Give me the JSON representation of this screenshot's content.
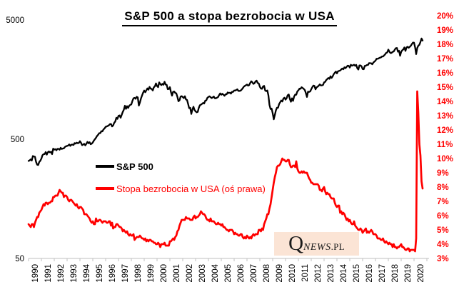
{
  "page": {
    "background": "#ffffff"
  },
  "watermark": {
    "q": "Q",
    "news": "NEWS",
    "pl": ".PL",
    "background": "#fbe4d5"
  },
  "chart_data": {
    "type": "line",
    "title": "S&P 500 a stopa bezrobocia w USA",
    "grid": false,
    "legend_position": "inside-left-middle",
    "x": {
      "frequency": "monthly",
      "start": "1990-01",
      "end": "2020-09",
      "tick_labels": [
        "1990",
        "1991",
        "1992",
        "1993",
        "1994",
        "1995",
        "1996",
        "1997",
        "1998",
        "1999",
        "2000",
        "2001",
        "2002",
        "2003",
        "2004",
        "2005",
        "2006",
        "2007",
        "2008",
        "2009",
        "2010",
        "2011",
        "2012",
        "2013",
        "2014",
        "2015",
        "2016",
        "2017",
        "2018",
        "2019",
        "2020"
      ]
    },
    "left_axis": {
      "scale": "log",
      "range": [
        50,
        5000
      ],
      "tick_values": [
        50,
        500,
        5000
      ],
      "tick_labels": [
        "50",
        "500",
        "5000"
      ],
      "color": "#000000"
    },
    "right_axis": {
      "scale": "linear",
      "min": 3,
      "max": 20,
      "step": 1,
      "unit": "%",
      "tick_labels": [
        "20%",
        "19%",
        "18%",
        "17%",
        "16%",
        "15%",
        "14%",
        "13%",
        "12%",
        "11%",
        "10%",
        "9%",
        "8%",
        "7%",
        "6%",
        "5%",
        "4%",
        "3%"
      ],
      "color": "#ff0000"
    },
    "series": [
      {
        "name": "S&P 500",
        "axis": "left",
        "color": "#000000",
        "values": [
          329,
          332,
          339,
          331,
          361,
          358,
          356,
          323,
          306,
          304,
          322,
          330,
          344,
          367,
          375,
          375,
          390,
          371,
          388,
          395,
          388,
          392,
          375,
          417,
          409,
          413,
          404,
          415,
          415,
          408,
          424,
          414,
          418,
          419,
          431,
          436,
          439,
          443,
          452,
          440,
          450,
          451,
          448,
          464,
          459,
          468,
          462,
          466,
          482,
          467,
          446,
          451,
          457,
          444,
          458,
          475,
          463,
          472,
          454,
          459,
          470,
          487,
          501,
          515,
          533,
          545,
          562,
          562,
          584,
          582,
          605,
          616,
          636,
          640,
          646,
          654,
          669,
          671,
          640,
          652,
          687,
          705,
          757,
          741,
          786,
          791,
          757,
          801,
          848,
          885,
          954,
          899,
          947,
          915,
          955,
          970,
          980,
          1049,
          1102,
          1112,
          1091,
          1134,
          1121,
          957,
          1017,
          1099,
          1164,
          1229,
          1280,
          1238,
          1286,
          1335,
          1302,
          1373,
          1329,
          1320,
          1283,
          1363,
          1389,
          1469,
          1394,
          1366,
          1499,
          1452,
          1421,
          1455,
          1431,
          1518,
          1437,
          1429,
          1315,
          1320,
          1366,
          1240,
          1160,
          1249,
          1256,
          1224,
          1211,
          1134,
          1041,
          1060,
          1139,
          1148,
          1130,
          1107,
          1147,
          1077,
          1067,
          990,
          911,
          916,
          815,
          886,
          936,
          880,
          856,
          841,
          848,
          917,
          964,
          975,
          990,
          1008,
          996,
          1051,
          1058,
          1112,
          1131,
          1145,
          1126,
          1107,
          1121,
          1141,
          1102,
          1104,
          1115,
          1130,
          1174,
          1212,
          1181,
          1204,
          1181,
          1157,
          1192,
          1191,
          1234,
          1220,
          1229,
          1207,
          1249,
          1248,
          1280,
          1281,
          1295,
          1311,
          1270,
          1270,
          1277,
          1304,
          1336,
          1378,
          1401,
          1418,
          1438,
          1407,
          1421,
          1482,
          1531,
          1503,
          1455,
          1474,
          1527,
          1549,
          1481,
          1468,
          1379,
          1331,
          1323,
          1386,
          1400,
          1280,
          1267,
          1283,
          1166,
          969,
          896,
          903,
          826,
          735,
          798,
          873,
          919,
          919,
          987,
          1021,
          1057,
          1036,
          1096,
          1115,
          1074,
          1104,
          1169,
          1187,
          1089,
          1031,
          1102,
          1049,
          1141,
          1183,
          1181,
          1258,
          1286,
          1327,
          1326,
          1364,
          1345,
          1321,
          1292,
          1219,
          1131,
          1253,
          1247,
          1258,
          1312,
          1366,
          1408,
          1398,
          1310,
          1362,
          1379,
          1407,
          1441,
          1412,
          1416,
          1426,
          1498,
          1515,
          1569,
          1598,
          1631,
          1606,
          1686,
          1633,
          1682,
          1757,
          1806,
          1848,
          1783,
          1859,
          1872,
          1884,
          1924,
          1960,
          1931,
          2003,
          1972,
          2018,
          2068,
          2059,
          1995,
          2105,
          2068,
          2086,
          2107,
          2063,
          2104,
          1972,
          1920,
          2079,
          2080,
          2044,
          1940,
          1932,
          2060,
          2065,
          2097,
          2099,
          2174,
          2171,
          2168,
          2126,
          2199,
          2239,
          2279,
          2364,
          2363,
          2384,
          2412,
          2423,
          2470,
          2472,
          2519,
          2575,
          2648,
          2674,
          2824,
          2714,
          2641,
          2648,
          2705,
          2718,
          2816,
          2902,
          2914,
          2712,
          2760,
          2507,
          2704,
          2785,
          2834,
          2946,
          2752,
          2942,
          2980,
          2926,
          2977,
          3038,
          3141,
          3231,
          3226,
          2954,
          2585,
          2912,
          3044,
          3100,
          3271,
          3500,
          3363
        ]
      },
      {
        "name": "Stopa bezrobocia w USA (oś prawa)",
        "axis": "right",
        "color": "#ff0000",
        "values": [
          5.4,
          5.3,
          5.2,
          5.4,
          5.4,
          5.2,
          5.5,
          5.7,
          5.9,
          5.9,
          6.2,
          6.3,
          6.4,
          6.6,
          6.8,
          6.7,
          6.9,
          6.9,
          6.8,
          6.9,
          6.9,
          7.0,
          7.0,
          7.3,
          7.3,
          7.4,
          7.4,
          7.4,
          7.6,
          7.8,
          7.7,
          7.6,
          7.6,
          7.3,
          7.4,
          7.4,
          7.3,
          7.1,
          7.0,
          7.1,
          7.1,
          7.0,
          6.9,
          6.8,
          6.7,
          6.8,
          6.6,
          6.5,
          6.6,
          6.6,
          6.5,
          6.4,
          6.1,
          6.1,
          6.1,
          6.0,
          5.9,
          5.8,
          5.6,
          5.5,
          5.6,
          5.4,
          5.4,
          5.8,
          5.6,
          5.6,
          5.7,
          5.7,
          5.6,
          5.5,
          5.6,
          5.6,
          5.6,
          5.5,
          5.5,
          5.6,
          5.6,
          5.3,
          5.5,
          5.1,
          5.2,
          5.2,
          5.4,
          5.4,
          5.3,
          5.2,
          5.2,
          5.1,
          4.9,
          5.0,
          4.9,
          4.8,
          4.9,
          4.7,
          4.6,
          4.7,
          4.6,
          4.6,
          4.7,
          4.3,
          4.4,
          4.5,
          4.5,
          4.5,
          4.6,
          4.5,
          4.4,
          4.4,
          4.3,
          4.4,
          4.2,
          4.3,
          4.2,
          4.3,
          4.3,
          4.2,
          4.2,
          4.1,
          4.1,
          4.0,
          4.0,
          4.1,
          4.0,
          3.8,
          4.0,
          4.0,
          4.0,
          4.1,
          3.9,
          3.9,
          3.9,
          3.9,
          4.2,
          4.2,
          4.3,
          4.4,
          4.3,
          4.5,
          4.6,
          4.9,
          5.0,
          5.3,
          5.5,
          5.7,
          5.7,
          5.7,
          5.7,
          5.9,
          5.8,
          5.8,
          5.8,
          5.7,
          5.7,
          5.7,
          5.9,
          6.0,
          5.8,
          5.9,
          5.9,
          6.0,
          6.1,
          6.3,
          6.2,
          6.1,
          6.1,
          6.0,
          5.8,
          5.7,
          5.7,
          5.6,
          5.8,
          5.6,
          5.6,
          5.6,
          5.5,
          5.4,
          5.4,
          5.5,
          5.4,
          5.4,
          5.3,
          5.4,
          5.2,
          5.2,
          5.1,
          5.0,
          5.0,
          4.9,
          5.0,
          5.0,
          5.0,
          4.9,
          4.7,
          4.8,
          4.7,
          4.7,
          4.6,
          4.6,
          4.7,
          4.7,
          4.5,
          4.4,
          4.5,
          4.4,
          4.6,
          4.5,
          4.4,
          4.5,
          4.4,
          4.6,
          4.7,
          4.6,
          4.7,
          4.7,
          4.7,
          5.0,
          5.0,
          4.9,
          5.1,
          5.0,
          5.4,
          5.6,
          5.8,
          6.1,
          6.1,
          6.5,
          6.8,
          7.3,
          7.8,
          8.3,
          8.7,
          9.0,
          9.4,
          9.5,
          9.5,
          9.6,
          9.8,
          10.0,
          9.9,
          9.9,
          9.8,
          9.8,
          9.9,
          9.9,
          9.6,
          9.4,
          9.4,
          9.5,
          9.5,
          9.4,
          9.8,
          9.3,
          9.1,
          9.0,
          9.0,
          9.1,
          9.0,
          9.1,
          9.0,
          9.0,
          9.0,
          8.8,
          8.6,
          8.5,
          8.3,
          8.3,
          8.2,
          8.2,
          8.2,
          8.2,
          8.2,
          8.1,
          7.8,
          7.8,
          7.7,
          7.9,
          8.0,
          7.7,
          7.5,
          7.6,
          7.5,
          7.5,
          7.3,
          7.2,
          7.2,
          7.2,
          6.9,
          6.7,
          6.6,
          6.7,
          6.7,
          6.2,
          6.3,
          6.1,
          6.2,
          6.1,
          5.9,
          5.7,
          5.8,
          5.6,
          5.7,
          5.5,
          5.4,
          5.4,
          5.6,
          5.3,
          5.2,
          5.1,
          5.0,
          5.0,
          5.1,
          5.0,
          4.8,
          4.9,
          5.0,
          5.1,
          4.8,
          4.9,
          4.8,
          4.9,
          5.0,
          4.9,
          4.7,
          4.7,
          4.7,
          4.6,
          4.4,
          4.4,
          4.4,
          4.3,
          4.3,
          4.4,
          4.2,
          4.1,
          4.2,
          4.1,
          4.0,
          4.1,
          4.0,
          4.0,
          3.8,
          4.0,
          3.8,
          3.8,
          3.7,
          3.8,
          3.8,
          3.9,
          4.0,
          3.8,
          3.8,
          3.7,
          3.6,
          3.6,
          3.7,
          3.7,
          3.5,
          3.6,
          3.6,
          3.6,
          3.6,
          3.5,
          4.4,
          14.7,
          13.2,
          11.0,
          10.2,
          8.4,
          7.9
        ]
      }
    ]
  }
}
